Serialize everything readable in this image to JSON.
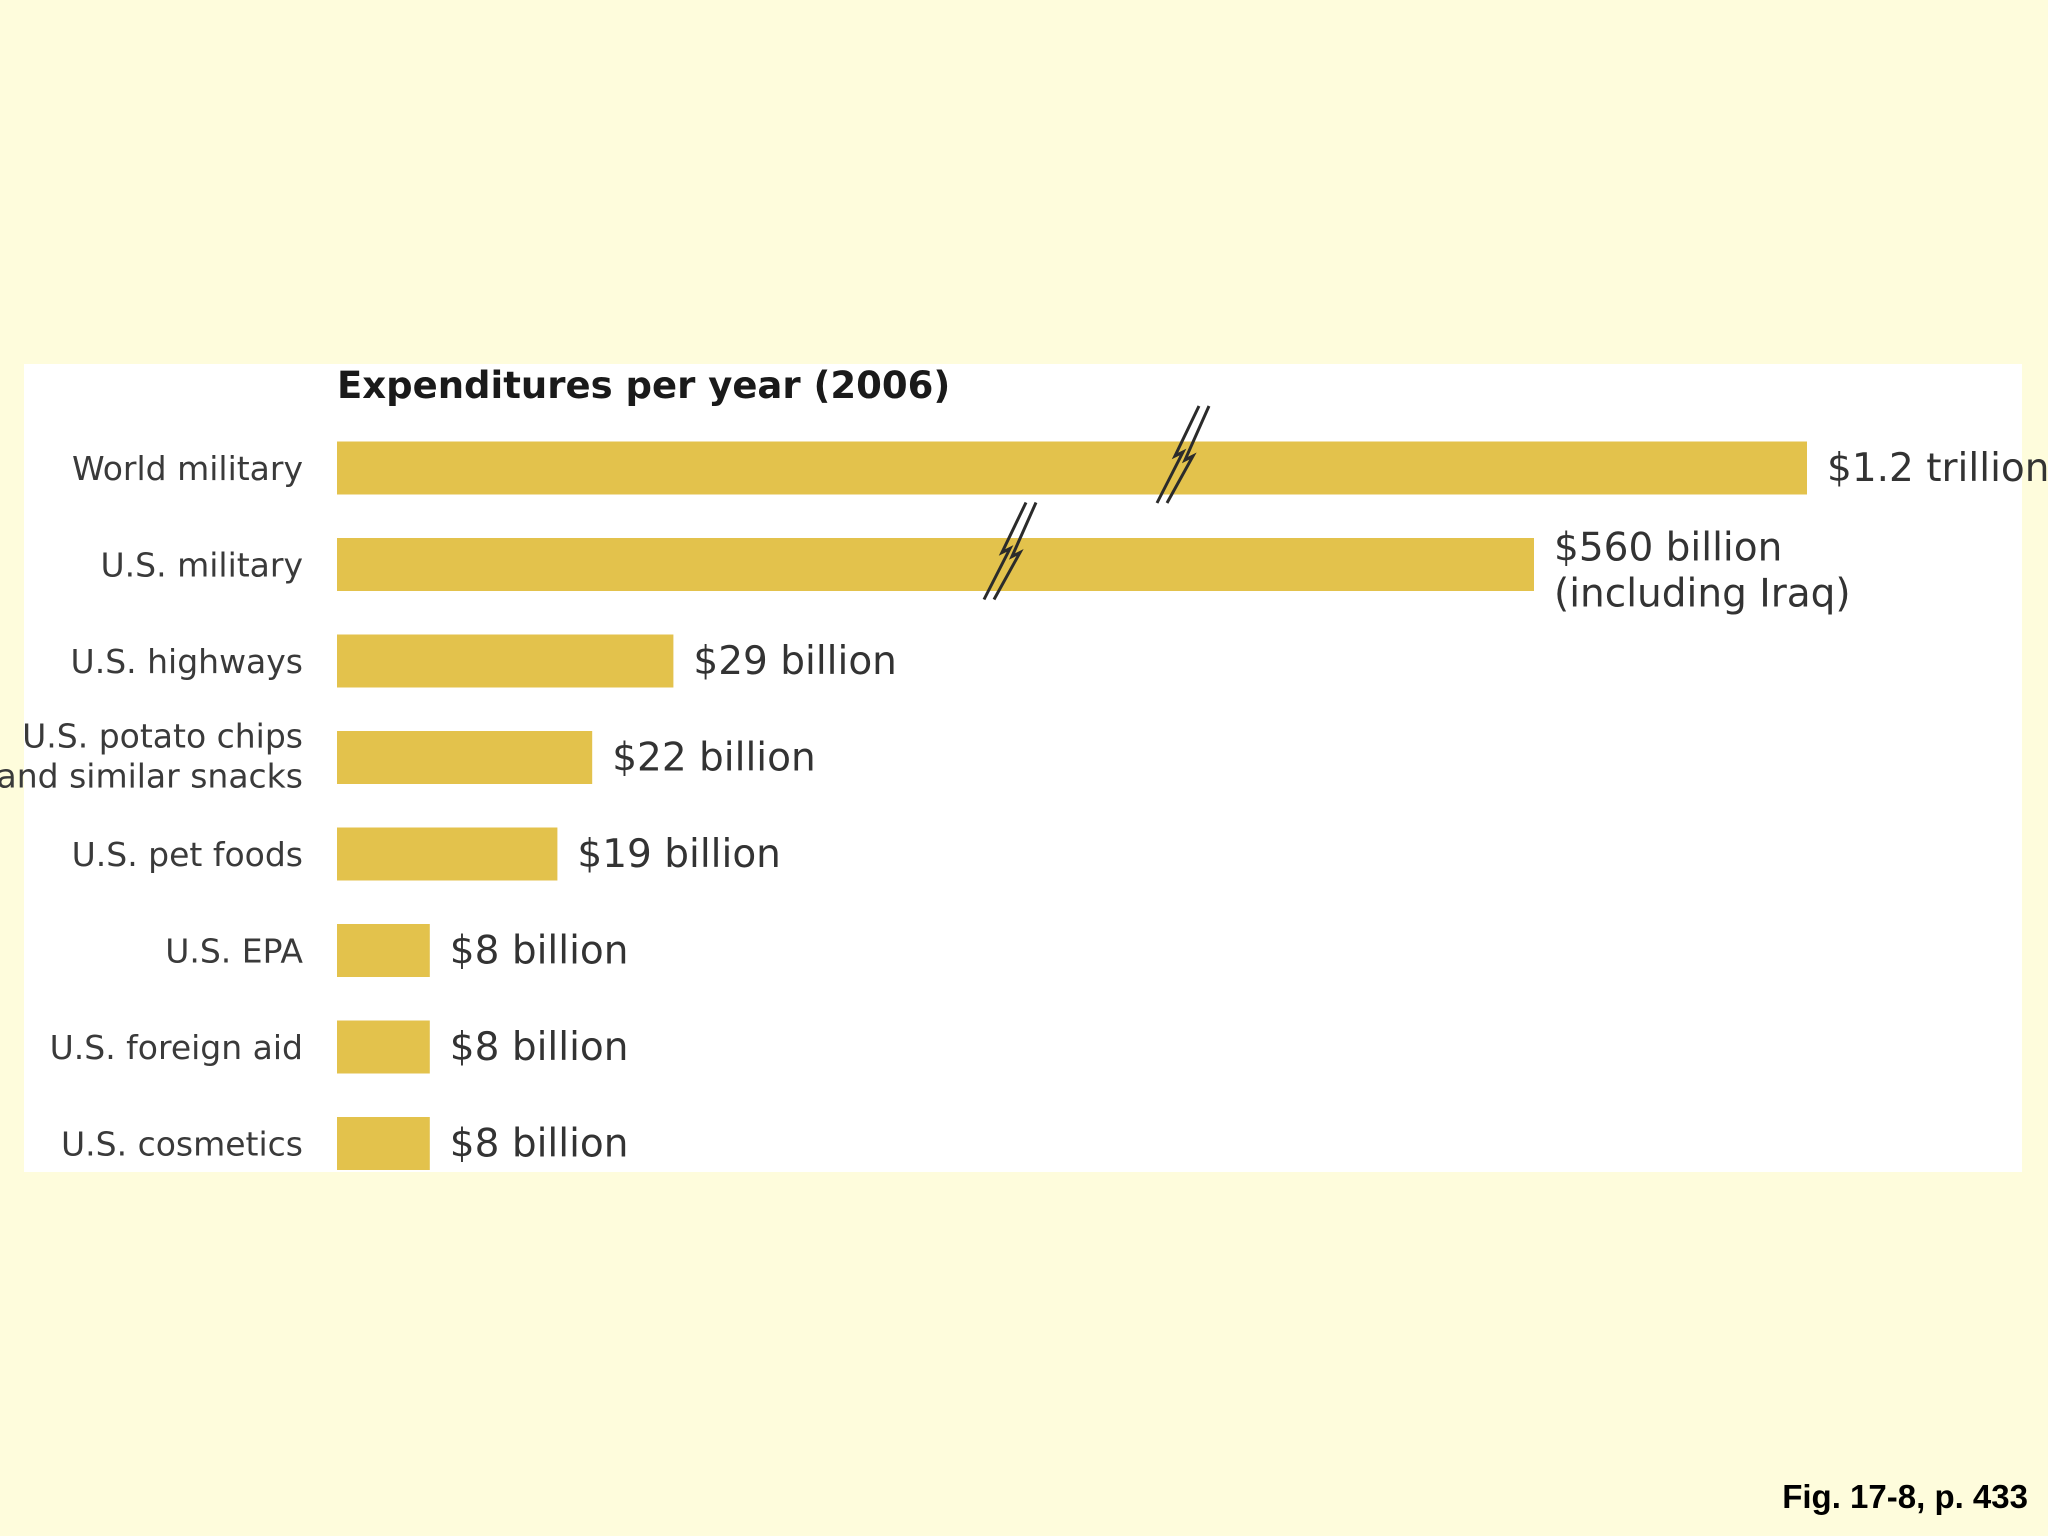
{
  "colors": {
    "bar": "#e3c24c",
    "page_background": "#fefcdc",
    "panel_background": "#ffffff"
  },
  "caption": "Fig. 17-8, p. 433",
  "chart_data": {
    "type": "bar",
    "orientation": "horizontal",
    "title": "Expenditures per year (2006)",
    "unit": "billion US$",
    "axis_break": true,
    "categories": [
      [
        "World military"
      ],
      [
        "U.S. military"
      ],
      [
        "U.S. highways"
      ],
      [
        "U.S. potato chips",
        "and similar snacks"
      ],
      [
        "U.S. pet foods"
      ],
      [
        "U.S. EPA"
      ],
      [
        "U.S. foreign aid"
      ],
      [
        "U.S. cosmetics"
      ]
    ],
    "values": [
      1200,
      560,
      29,
      22,
      19,
      8,
      8,
      8
    ],
    "value_labels": [
      [
        "$1.2 trillion"
      ],
      [
        "$560 billion",
        "(including Iraq)"
      ],
      [
        "$29 billion"
      ],
      [
        "$22 billion"
      ],
      [
        "$19 billion"
      ],
      [
        "$8 billion"
      ],
      [
        "$8 billion"
      ],
      [
        "$8 billion"
      ]
    ],
    "broken_bars": [
      0,
      1
    ]
  }
}
